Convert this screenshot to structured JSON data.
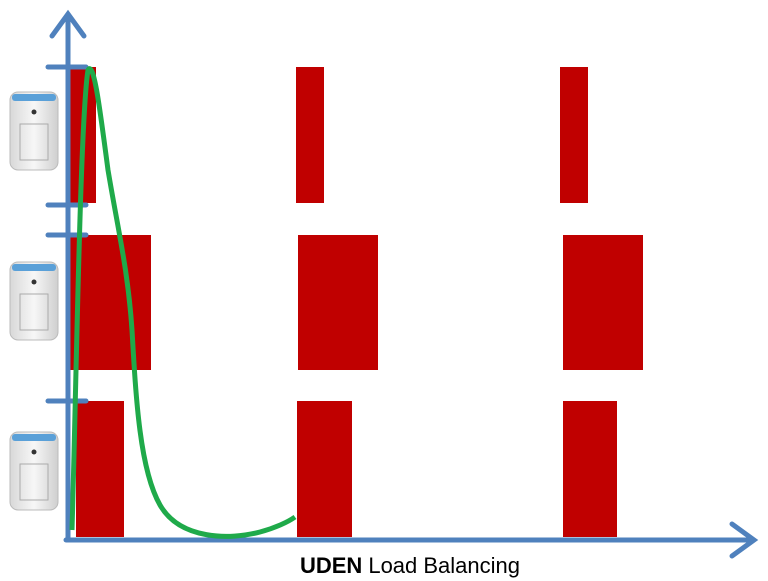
{
  "caption": {
    "bold": "UDEN",
    "rest": "Load Balancing"
  }
}
